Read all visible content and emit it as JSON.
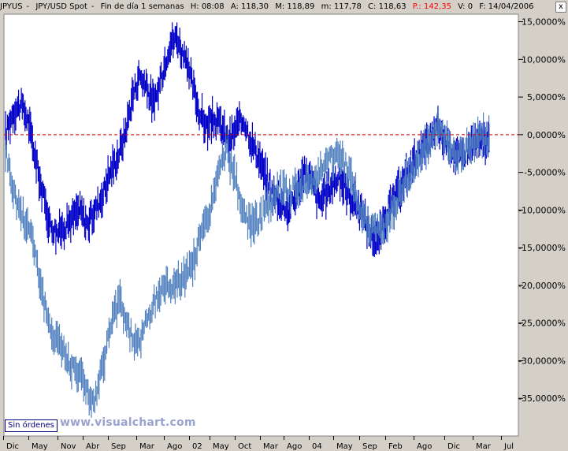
{
  "header": {
    "symbol": "JPYUS",
    "instrument": "JPY/USD Spot",
    "period": "Fin de día 1 semanas",
    "hour": "H: 08:08",
    "high": "A: 118,30",
    "max": "M: 118,89",
    "min": "m: 117,78",
    "close": "C: 118,63",
    "price": "P.: 142,35",
    "volume": "V: 0",
    "date": "F: 14/04/2006",
    "close_label": "x"
  },
  "orders_label": "Sin órdenes",
  "watermark": "www.visualchart.com",
  "colors": {
    "plot_background": "#ffffff",
    "primary_series": "#0000c8",
    "secondary_series": "#4f7fbf",
    "zero_line": "#d40000",
    "header_red": "#ff0000"
  },
  "chart_data": {
    "type": "line",
    "grid": false,
    "y_unit": "%",
    "ylim": [
      -40,
      16
    ],
    "y_ticks": [
      "15,0000%",
      "10,0000%",
      "5,0000%",
      "0,0000%",
      "-5,0000%",
      "-10,0000%",
      "-15,0000%",
      "-20,0000%",
      "-25,0000%",
      "-30,0000%",
      "-35,0000%"
    ],
    "y_tick_values": [
      15,
      10,
      5,
      0,
      -5,
      -10,
      -15,
      -20,
      -25,
      -30,
      -35
    ],
    "x_ticks": [
      "Dic",
      "May",
      "Nov",
      "Abr",
      "Sep",
      "Mar",
      "Ago",
      "02",
      "May",
      "Oct",
      "Mar",
      "Ago",
      "04",
      "May",
      "Sep",
      "Feb",
      "Ago",
      "Dic",
      "Mar",
      "Jul"
    ],
    "reference_line": 0,
    "series": [
      {
        "values": [
          0,
          3,
          4,
          2,
          -3,
          -8,
          -12,
          -13,
          -12,
          -11,
          -10,
          -12,
          -10,
          -8,
          -5,
          -3,
          0,
          5,
          8,
          6,
          4,
          8,
          12,
          13,
          10,
          7,
          3,
          1,
          2,
          1,
          -1,
          1,
          2,
          -1,
          -3,
          -6,
          -8,
          -9,
          -10,
          -8,
          -5,
          -6,
          -9,
          -8,
          -6,
          -6,
          -8,
          -9,
          -11,
          -13,
          -14,
          -11,
          -9,
          -7,
          -5,
          -3,
          -2,
          -1,
          1,
          -1,
          -2,
          -3,
          -2,
          -1,
          -1,
          -1
        ]
      },
      {
        "values": [
          -2,
          -8,
          -11,
          -13,
          -20,
          -26,
          -27,
          -30,
          -31,
          -33,
          -36,
          -31,
          -25,
          -22,
          -26,
          -28,
          -25,
          -22,
          -20,
          -20,
          -19,
          -18,
          -14,
          -11,
          -6,
          -2,
          -5,
          -11,
          -12,
          -11,
          -9,
          -7,
          -8,
          -7,
          -7,
          -6,
          -4,
          -3,
          -3,
          -5,
          -9,
          -12,
          -13,
          -12,
          -10,
          -7,
          -5,
          -3,
          -1,
          1,
          -1,
          -3,
          -2,
          -1,
          0,
          -1
        ]
      }
    ]
  }
}
